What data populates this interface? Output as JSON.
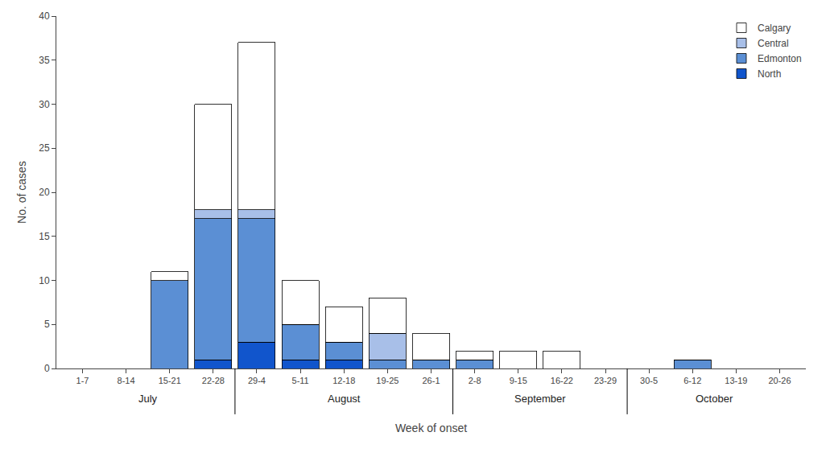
{
  "chart_data": {
    "type": "bar",
    "stacked": true,
    "categories": [
      "1-7",
      "8-14",
      "15-21",
      "22-28",
      "29-4",
      "5-11",
      "12-18",
      "19-25",
      "26-1",
      "2-8",
      "9-15",
      "16-22",
      "23-29",
      "30-5",
      "6-12",
      "13-19",
      "20-26"
    ],
    "series": [
      {
        "name": "North",
        "color": "#1155CC",
        "values": [
          0,
          0,
          0,
          1,
          3,
          1,
          1,
          0,
          0,
          0,
          0,
          0,
          0,
          0,
          0,
          0,
          0
        ]
      },
      {
        "name": "Edmonton",
        "color": "#5B8FD4",
        "values": [
          0,
          0,
          10,
          16,
          14,
          4,
          2,
          1,
          1,
          1,
          0,
          0,
          0,
          0,
          1,
          0,
          0
        ]
      },
      {
        "name": "Central",
        "color": "#A8BFE8",
        "values": [
          0,
          0,
          0,
          1,
          1,
          0,
          0,
          3,
          0,
          0,
          0,
          0,
          0,
          0,
          0,
          0,
          0
        ]
      },
      {
        "name": "Calgary",
        "color": "#FFFFFF",
        "values": [
          0,
          0,
          1,
          12,
          19,
          5,
          4,
          4,
          3,
          1,
          2,
          2,
          0,
          0,
          0,
          0,
          0
        ]
      }
    ],
    "xlabel": "Week of onset",
    "ylabel": "No. of cases",
    "ylim": [
      0,
      40
    ],
    "yticks": [
      0,
      5,
      10,
      15,
      20,
      25,
      30,
      35,
      40
    ],
    "grid": false,
    "legend": "upper right",
    "annotations": [
      {
        "text": "July",
        "categories": [
          "1-7",
          "8-14",
          "15-21",
          "22-28"
        ]
      },
      {
        "text": "August",
        "categories": [
          "29-4",
          "5-11",
          "12-18",
          "19-25",
          "26-1"
        ]
      },
      {
        "text": "September",
        "categories": [
          "2-8",
          "9-15",
          "16-22",
          "23-29"
        ]
      },
      {
        "text": "October",
        "categories": [
          "30-5",
          "6-12",
          "13-19",
          "20-26"
        ]
      }
    ]
  }
}
